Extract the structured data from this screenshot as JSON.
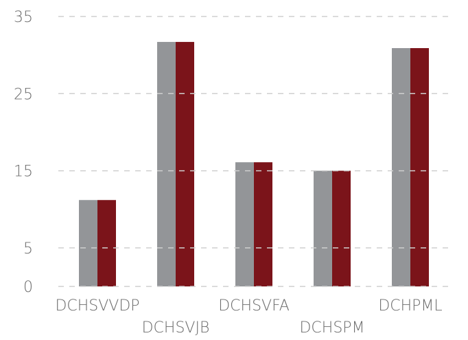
{
  "chart_data": {
    "type": "bar",
    "categories": [
      "DCHSVVDP",
      "DCHSVJB",
      "DCHSVFA",
      "DCHSPM",
      "DCHPML"
    ],
    "series": [
      {
        "color": "#939598",
        "values": [
          11.2,
          31.7,
          16.1,
          15.0,
          30.9
        ]
      },
      {
        "color": "#7b141a",
        "values": [
          11.2,
          31.7,
          16.1,
          15.0,
          30.9
        ]
      }
    ],
    "ylim": [
      0,
      35
    ],
    "yticks": [
      0,
      5,
      15,
      25,
      35
    ],
    "grid": true
  }
}
